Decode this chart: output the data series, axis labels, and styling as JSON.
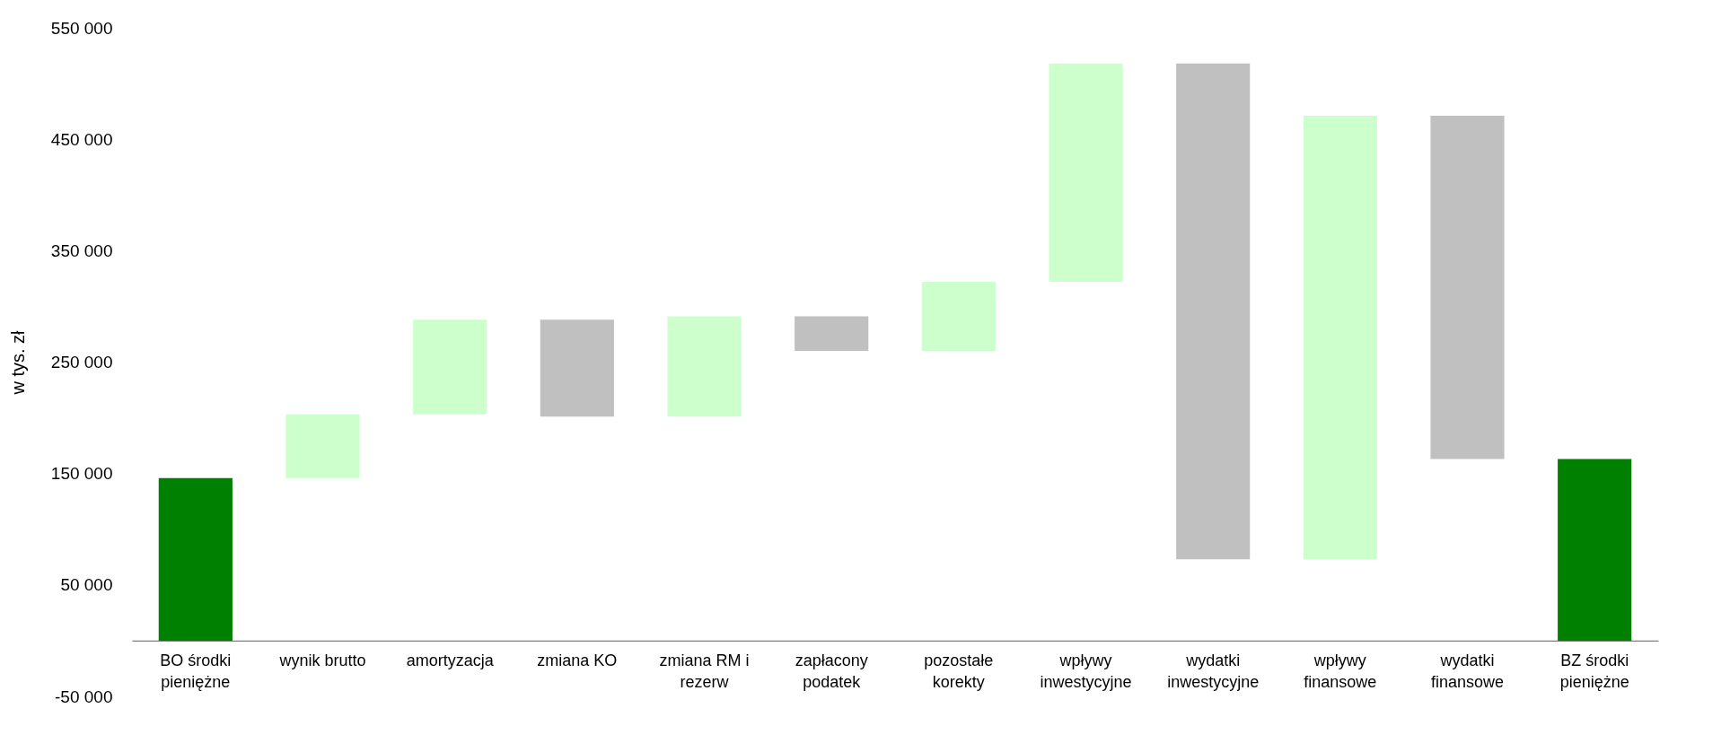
{
  "chart_data": {
    "type": "bar",
    "ylabel": "w tys. zł",
    "categories": [
      "BO środki pieniężne",
      "wynik brutto",
      "amortyzacja",
      "zmiana KO",
      "zmiana RM i rezerw",
      "zapłacony podatek",
      "pozostałe korekty",
      "wpływy inwestycyjne",
      "wydatki inwestycyjne",
      "wpływy finansowe",
      "wydatki finansowe",
      "BZ środki pieniężne"
    ],
    "base": [
      0,
      146000,
      203000,
      288000,
      201000,
      291000,
      260000,
      322000,
      518000,
      73000,
      471000,
      0
    ],
    "values": [
      146000,
      57000,
      85000,
      -87000,
      90000,
      -31000,
      62000,
      196000,
      -445000,
      398000,
      -308000,
      163000
    ],
    "colors": [
      "#008000",
      "#ccffcc",
      "#ccffcc",
      "#c0c0c0",
      "#ccffcc",
      "#c0c0c0",
      "#ccffcc",
      "#ccffcc",
      "#c0c0c0",
      "#ccffcc",
      "#c0c0c0",
      "#008000"
    ],
    "ylim": [
      -50000,
      550000
    ],
    "yticks": [
      {
        "value": -50000,
        "label": "-50 000"
      },
      {
        "value": 50000,
        "label": "50 000"
      },
      {
        "value": 150000,
        "label": "150 000"
      },
      {
        "value": 250000,
        "label": "250 000"
      },
      {
        "value": 350000,
        "label": "350 000"
      },
      {
        "value": 450000,
        "label": "450 000"
      },
      {
        "value": 550000,
        "label": "550 000"
      }
    ]
  }
}
